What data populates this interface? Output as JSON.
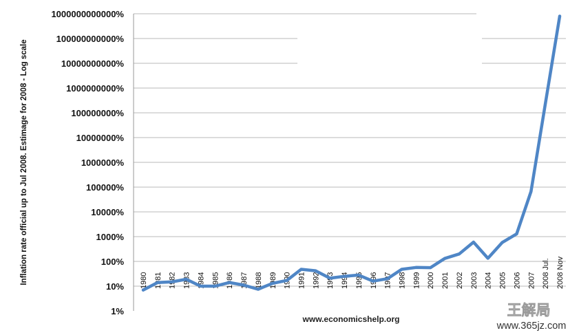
{
  "chart_data": {
    "type": "line",
    "ylabel": "Inflation rate official up to Jul 2008. Estimage for 2008 - Log scale",
    "y_scale": "log",
    "ylim": [
      1,
      1000000000000
    ],
    "y_ticks": [
      {
        "value": 1,
        "label": "1%"
      },
      {
        "value": 10,
        "label": "10%"
      },
      {
        "value": 100,
        "label": "100%"
      },
      {
        "value": 1000,
        "label": "1000%"
      },
      {
        "value": 10000,
        "label": "10000%"
      },
      {
        "value": 100000,
        "label": "100000%"
      },
      {
        "value": 1000000,
        "label": "1000000%"
      },
      {
        "value": 10000000,
        "label": "10000000%"
      },
      {
        "value": 100000000,
        "label": "100000000%"
      },
      {
        "value": 1000000000,
        "label": "1000000000%"
      },
      {
        "value": 10000000000,
        "label": "10000000000%"
      },
      {
        "value": 100000000000,
        "label": "100000000000%"
      },
      {
        "value": 1000000000000,
        "label": "1000000000000%"
      }
    ],
    "categories": [
      "1980",
      "1981",
      "1982",
      "1983",
      "1984",
      "1985",
      "1986",
      "1987",
      "1988",
      "1989",
      "1990",
      "1991",
      "1992",
      "1993",
      "1994",
      "1995",
      "1996",
      "1997",
      "1998",
      "1999",
      "2000",
      "2001",
      "2002",
      "2003",
      "2004",
      "2005",
      "2006",
      "2007",
      "2008 Jul.",
      "2008 Nov"
    ],
    "series": [
      {
        "values": [
          7,
          14,
          15,
          19,
          10,
          10,
          14,
          11,
          7.5,
          13,
          17,
          48,
          42,
          21,
          25,
          28,
          16,
          20,
          48,
          57,
          56,
          132,
          199,
          599,
          133,
          585,
          1281,
          66212,
          231000000,
          800000000000
        ]
      }
    ],
    "grid": true,
    "legend": "none",
    "line_color": "#4f86c6"
  },
  "source": "www.economicshelp.org",
  "watermark": {
    "title": "王解局",
    "url": "www.365jz.com"
  }
}
